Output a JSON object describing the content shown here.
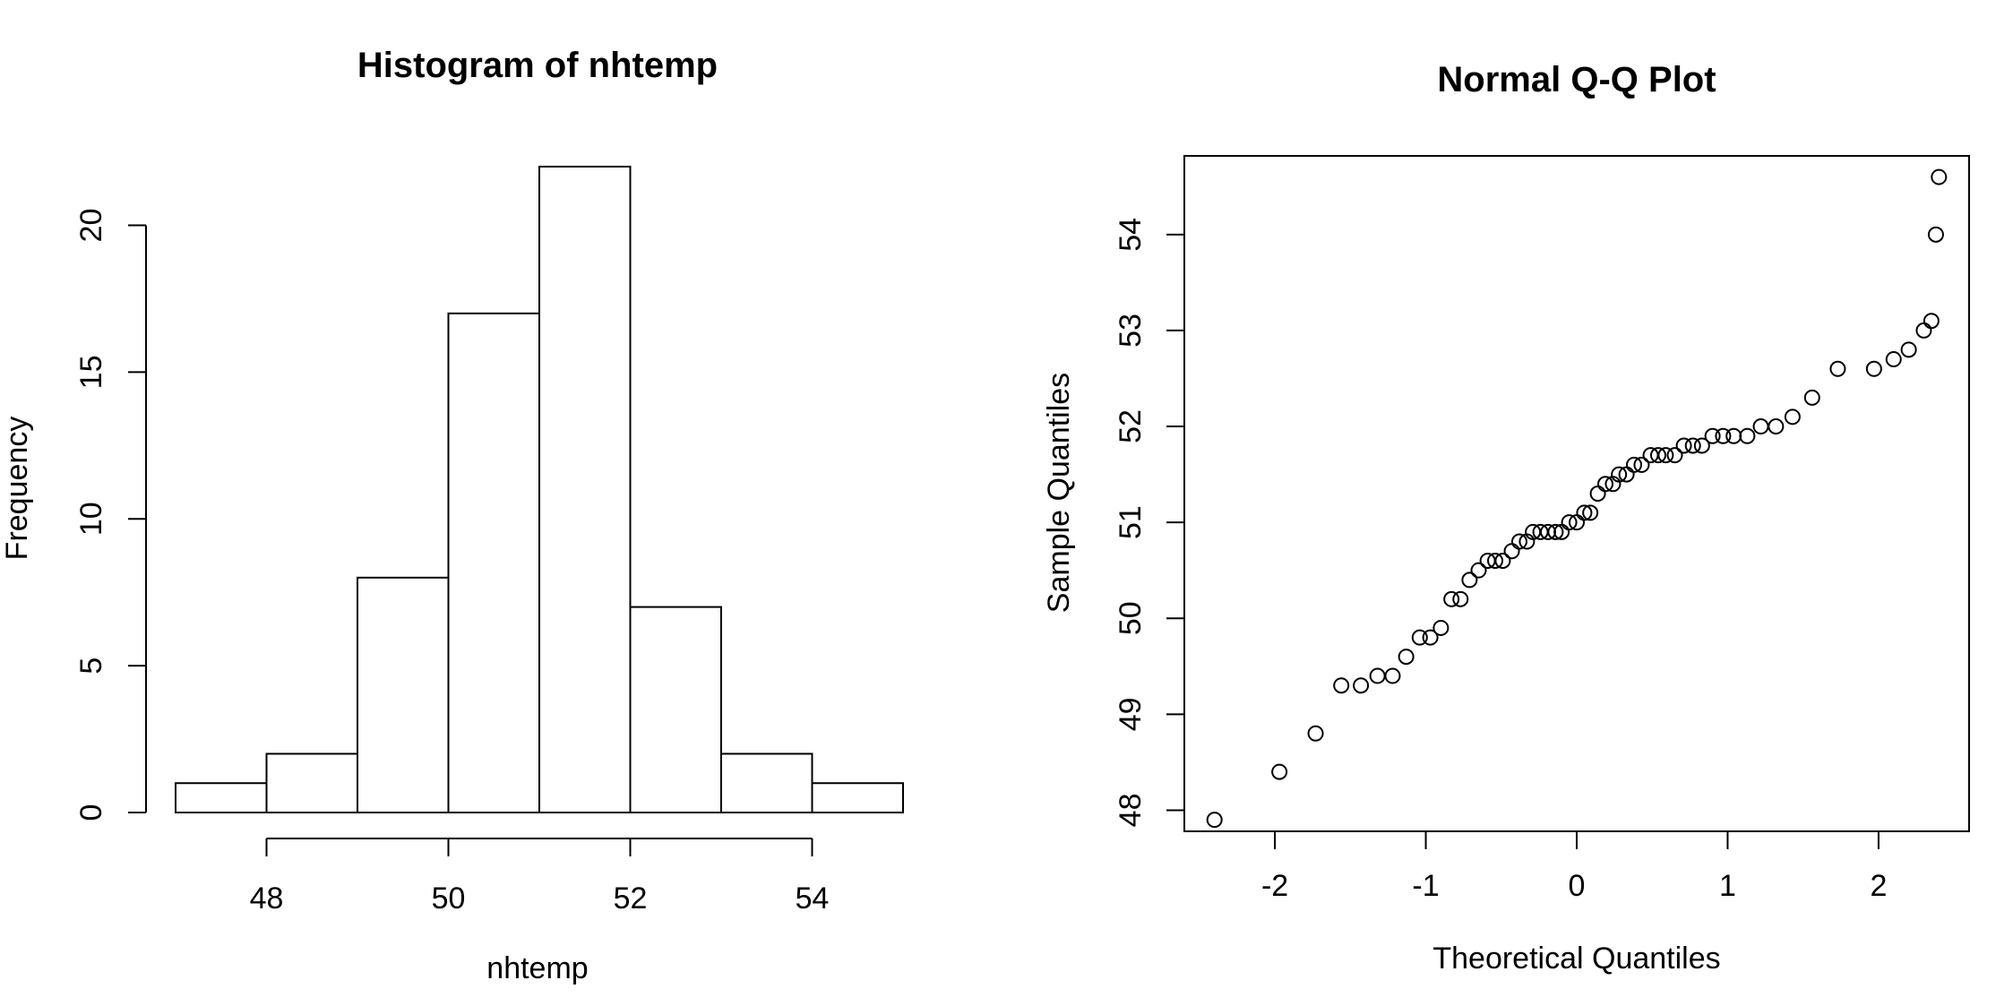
{
  "chart_data": [
    {
      "type": "bar",
      "title": "Histogram of nhtemp",
      "xlabel": "nhtemp",
      "ylabel": "Frequency",
      "bins": [
        {
          "from": 47,
          "to": 48,
          "count": 1
        },
        {
          "from": 48,
          "to": 49,
          "count": 2
        },
        {
          "from": 49,
          "to": 50,
          "count": 8
        },
        {
          "from": 50,
          "to": 51,
          "count": 17
        },
        {
          "from": 51,
          "to": 52,
          "count": 22
        },
        {
          "from": 52,
          "to": 53,
          "count": 7
        },
        {
          "from": 53,
          "to": 54,
          "count": 2
        },
        {
          "from": 54,
          "to": 55,
          "count": 1
        }
      ],
      "xlim": [
        47,
        55
      ],
      "ylim": [
        0,
        22
      ],
      "xticks": [
        48,
        50,
        52,
        54
      ],
      "xtick_labels": [
        "48",
        "50",
        "52",
        "54"
      ],
      "yticks": [
        0,
        5,
        10,
        15,
        20
      ],
      "ytick_labels": [
        "0",
        "5",
        "10",
        "15",
        "20"
      ],
      "fill": "#ffffff",
      "stroke": "#000000"
    },
    {
      "type": "scatter",
      "title": "Normal Q-Q Plot",
      "xlabel": "Theoretical Quantiles",
      "ylabel": "Sample Quantiles",
      "xlim": [
        -2.6,
        2.6
      ],
      "ylim": [
        47.78,
        54.82
      ],
      "xticks": [
        -2,
        -1,
        0,
        1,
        2
      ],
      "xtick_labels": [
        "-2",
        "-1",
        "0",
        "1",
        "2"
      ],
      "yticks": [
        48,
        49,
        50,
        51,
        52,
        53,
        54
      ],
      "ytick_labels": [
        "48",
        "49",
        "50",
        "51",
        "52",
        "53",
        "54"
      ],
      "grid": false,
      "marker": "open-circle",
      "stroke": "#000000",
      "points": [
        {
          "x": -2.4,
          "y": 47.9
        },
        {
          "x": -1.97,
          "y": 48.4
        },
        {
          "x": -1.73,
          "y": 48.8
        },
        {
          "x": -1.56,
          "y": 49.3
        },
        {
          "x": -1.43,
          "y": 49.3
        },
        {
          "x": -1.32,
          "y": 49.4
        },
        {
          "x": -1.22,
          "y": 49.4
        },
        {
          "x": -1.13,
          "y": 49.6
        },
        {
          "x": -1.04,
          "y": 49.8
        },
        {
          "x": -0.97,
          "y": 49.8
        },
        {
          "x": -0.9,
          "y": 49.9
        },
        {
          "x": -0.83,
          "y": 50.2
        },
        {
          "x": -0.77,
          "y": 50.2
        },
        {
          "x": -0.71,
          "y": 50.4
        },
        {
          "x": -0.65,
          "y": 50.5
        },
        {
          "x": -0.59,
          "y": 50.6
        },
        {
          "x": -0.54,
          "y": 50.6
        },
        {
          "x": -0.49,
          "y": 50.6
        },
        {
          "x": -0.43,
          "y": 50.7
        },
        {
          "x": -0.38,
          "y": 50.8
        },
        {
          "x": -0.33,
          "y": 50.8
        },
        {
          "x": -0.29,
          "y": 50.9
        },
        {
          "x": -0.24,
          "y": 50.9
        },
        {
          "x": -0.19,
          "y": 50.9
        },
        {
          "x": -0.14,
          "y": 50.9
        },
        {
          "x": -0.1,
          "y": 50.9
        },
        {
          "x": -0.05,
          "y": 51.0
        },
        {
          "x": 0.0,
          "y": 51.0
        },
        {
          "x": 0.05,
          "y": 51.1
        },
        {
          "x": 0.09,
          "y": 51.1
        },
        {
          "x": 0.14,
          "y": 51.3
        },
        {
          "x": 0.19,
          "y": 51.4
        },
        {
          "x": 0.24,
          "y": 51.4
        },
        {
          "x": 0.28,
          "y": 51.5
        },
        {
          "x": 0.33,
          "y": 51.5
        },
        {
          "x": 0.38,
          "y": 51.6
        },
        {
          "x": 0.43,
          "y": 51.6
        },
        {
          "x": 0.49,
          "y": 51.7
        },
        {
          "x": 0.54,
          "y": 51.7
        },
        {
          "x": 0.59,
          "y": 51.7
        },
        {
          "x": 0.65,
          "y": 51.7
        },
        {
          "x": 0.71,
          "y": 51.8
        },
        {
          "x": 0.77,
          "y": 51.8
        },
        {
          "x": 0.83,
          "y": 51.8
        },
        {
          "x": 0.9,
          "y": 51.9
        },
        {
          "x": 0.97,
          "y": 51.9
        },
        {
          "x": 1.04,
          "y": 51.9
        },
        {
          "x": 1.13,
          "y": 51.9
        },
        {
          "x": 1.22,
          "y": 52.0
        },
        {
          "x": 1.32,
          "y": 52.0
        },
        {
          "x": 1.43,
          "y": 52.1
        },
        {
          "x": 1.56,
          "y": 52.3
        },
        {
          "x": 1.73,
          "y": 52.6
        },
        {
          "x": 1.97,
          "y": 52.6
        },
        {
          "x": 2.1,
          "y": 52.7
        },
        {
          "x": 2.2,
          "y": 52.8
        },
        {
          "x": 2.3,
          "y": 53.0
        },
        {
          "x": 2.35,
          "y": 53.1
        },
        {
          "x": 2.38,
          "y": 54.0
        },
        {
          "x": 2.4,
          "y": 54.6
        }
      ]
    }
  ]
}
